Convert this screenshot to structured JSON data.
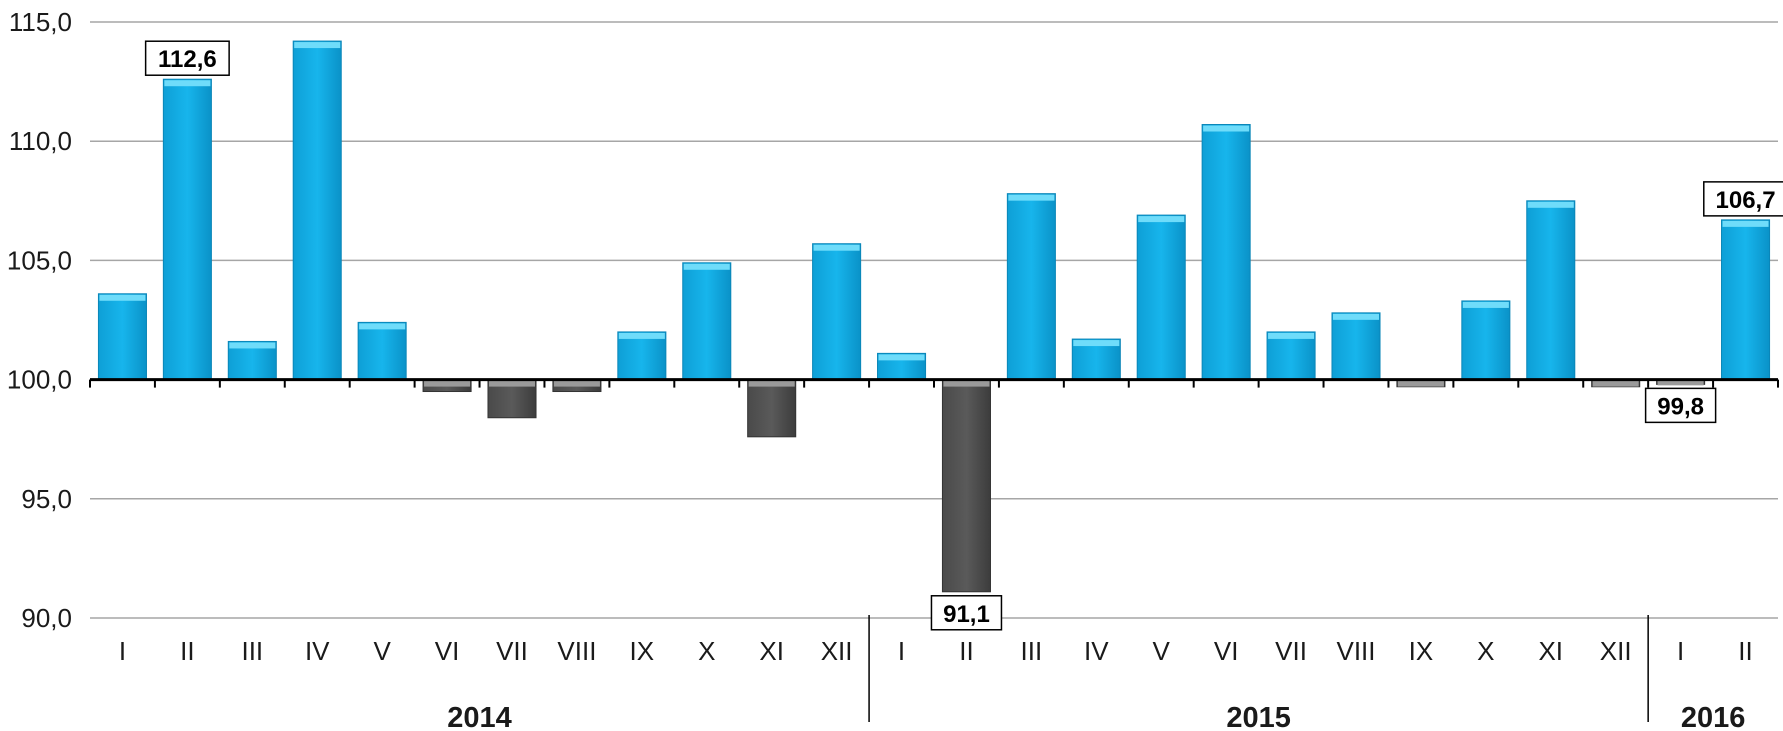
{
  "chart_data": {
    "type": "bar",
    "title": "",
    "xlabel": "",
    "ylabel": "",
    "ylim": [
      90,
      115
    ],
    "yticks": [
      "90,0",
      "95,0",
      "100,0",
      "105,0",
      "110,0",
      "115,0"
    ],
    "baseline": 100,
    "grid": true,
    "categories": [
      "I",
      "II",
      "III",
      "IV",
      "V",
      "VI",
      "VII",
      "VIII",
      "IX",
      "X",
      "XI",
      "XII",
      "I",
      "II",
      "III",
      "IV",
      "V",
      "VI",
      "VII",
      "VIII",
      "IX",
      "X",
      "XI",
      "XII",
      "I",
      "II"
    ],
    "values": [
      103.6,
      112.6,
      101.6,
      114.2,
      102.4,
      99.5,
      98.4,
      99.5,
      102.0,
      104.9,
      97.6,
      105.7,
      101.1,
      91.1,
      107.8,
      101.7,
      106.9,
      110.7,
      102.0,
      102.8,
      99.7,
      103.3,
      107.5,
      99.7,
      99.8,
      106.7
    ],
    "groups": [
      {
        "label": "2014",
        "start": 0,
        "end": 11
      },
      {
        "label": "2015",
        "start": 12,
        "end": 23
      },
      {
        "label": "2016",
        "start": 24,
        "end": 25
      }
    ],
    "callouts": [
      {
        "index": 1,
        "text": "112,6"
      },
      {
        "index": 13,
        "text": "91,1"
      },
      {
        "index": 24,
        "text": "99,8"
      },
      {
        "index": 25,
        "text": "106,7"
      }
    ],
    "colors": {
      "positive": "#17b5ec",
      "positive_top": "#6fdcfa",
      "negative": "#5a5a5a",
      "negative_top": "#9a9a9a",
      "grid": "#a6a6a6",
      "axis": "#000000"
    }
  }
}
